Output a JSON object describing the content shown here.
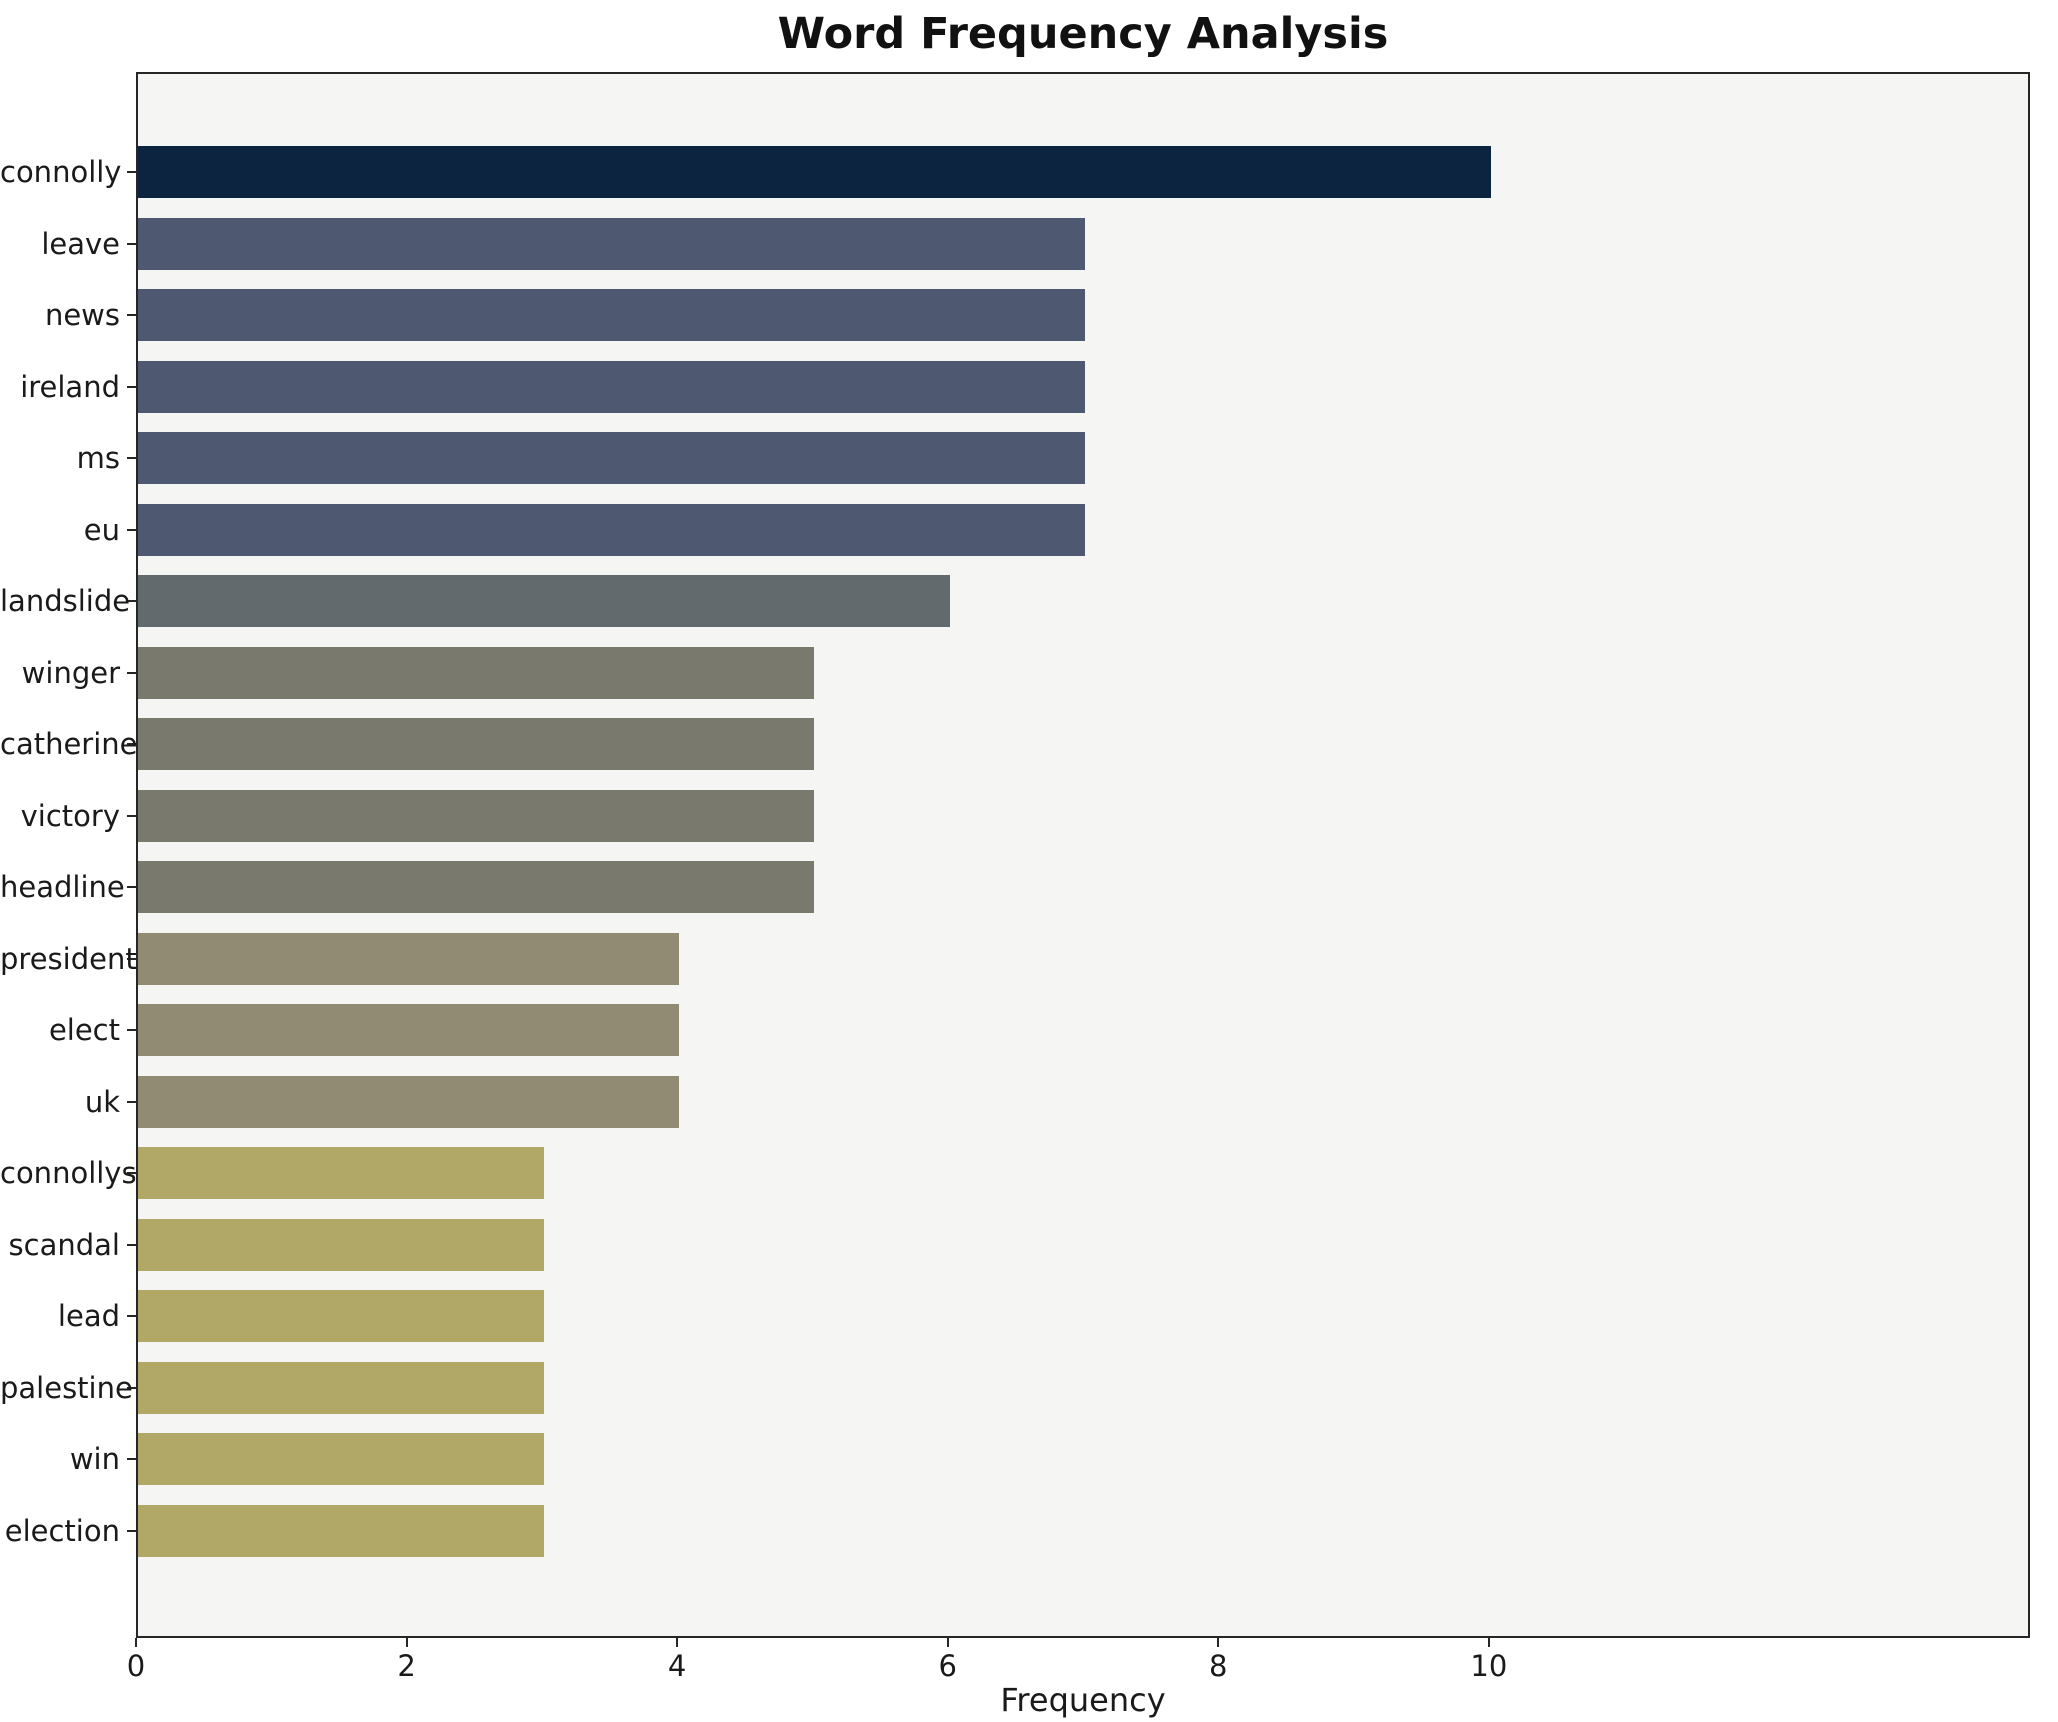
{
  "chart_data": {
    "type": "bar",
    "orientation": "horizontal",
    "title": "Word Frequency Analysis",
    "xlabel": "Frequency",
    "ylabel": "",
    "categories": [
      "connolly",
      "leave",
      "news",
      "ireland",
      "ms",
      "eu",
      "landslide",
      "winger",
      "catherine",
      "victory",
      "headline",
      "president",
      "elect",
      "uk",
      "connollys",
      "scandal",
      "lead",
      "palestine",
      "win",
      "election"
    ],
    "values": [
      10,
      7,
      7,
      7,
      7,
      7,
      6,
      5,
      5,
      5,
      5,
      4,
      4,
      4,
      3,
      3,
      3,
      3,
      3,
      3
    ],
    "xlim": [
      0,
      14
    ],
    "xticks": [
      0,
      2,
      4,
      6,
      8,
      10
    ],
    "grid": false,
    "legend": null,
    "bar_colors_by_value": {
      "10": "#0d2440",
      "7": "#4e5870",
      "6": "#626a6d",
      "5": "#797a6d",
      "4": "#908b72",
      "3": "#b1a766"
    },
    "plot_background": "#f5f5f3",
    "figure_background": "#ffffff",
    "spine_color": "#262626",
    "text_color": "#1a1a1a"
  }
}
